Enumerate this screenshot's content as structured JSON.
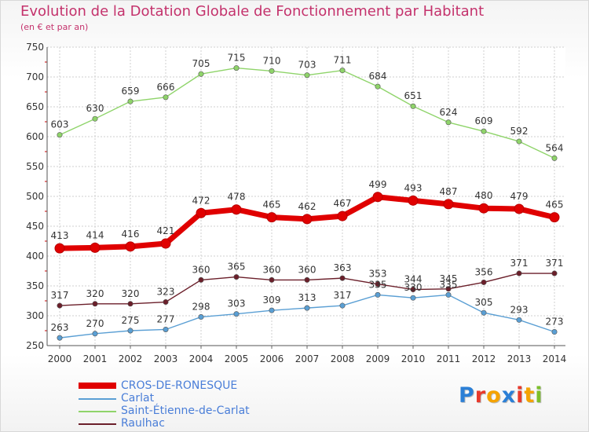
{
  "title": "Evolution de la Dotation Globale de Fonctionnement par Habitant",
  "subtitle": "(en € et par an)",
  "logo": {
    "text": "Proxiti",
    "letters": [
      "P",
      "r",
      "o",
      "x",
      "i",
      "t",
      "i"
    ],
    "colors": [
      "#2b7fd6",
      "#e8392c",
      "#f5a300",
      "#2b7fd6",
      "#e8392c",
      "#f5a300",
      "#7cbf2a"
    ]
  },
  "chart_data": {
    "type": "line",
    "categories": [
      "2000",
      "2001",
      "2002",
      "2003",
      "2004",
      "2005",
      "2006",
      "2007",
      "2008",
      "2009",
      "2010",
      "2011",
      "2012",
      "2013",
      "2014"
    ],
    "ylim": [
      250,
      750
    ],
    "yticks": [
      "250",
      "300",
      "350",
      "400",
      "450",
      "500",
      "550",
      "600",
      "650",
      "700",
      "750"
    ],
    "grid": true,
    "legend_placement": "bottom-left",
    "series": [
      {
        "name": "CROS-DE-RONESQUE",
        "color": "#e00000",
        "values": [
          413,
          414,
          416,
          421,
          472,
          478,
          465,
          462,
          467,
          499,
          493,
          487,
          480,
          479,
          465
        ]
      },
      {
        "name": "Carlat",
        "color": "#5a9fd4",
        "values": [
          263,
          270,
          275,
          277,
          298,
          303,
          309,
          313,
          317,
          335,
          330,
          335,
          305,
          293,
          273
        ]
      },
      {
        "name": "Saint-Étienne-de-Carlat",
        "color": "#8fd46a",
        "values": [
          603,
          630,
          659,
          666,
          705,
          715,
          710,
          703,
          711,
          684,
          651,
          624,
          609,
          592,
          564
        ]
      },
      {
        "name": "Raulhac",
        "color": "#6b1f2a",
        "values": [
          317,
          320,
          320,
          323,
          360,
          365,
          360,
          360,
          363,
          353,
          344,
          345,
          356,
          371,
          371
        ]
      }
    ]
  }
}
